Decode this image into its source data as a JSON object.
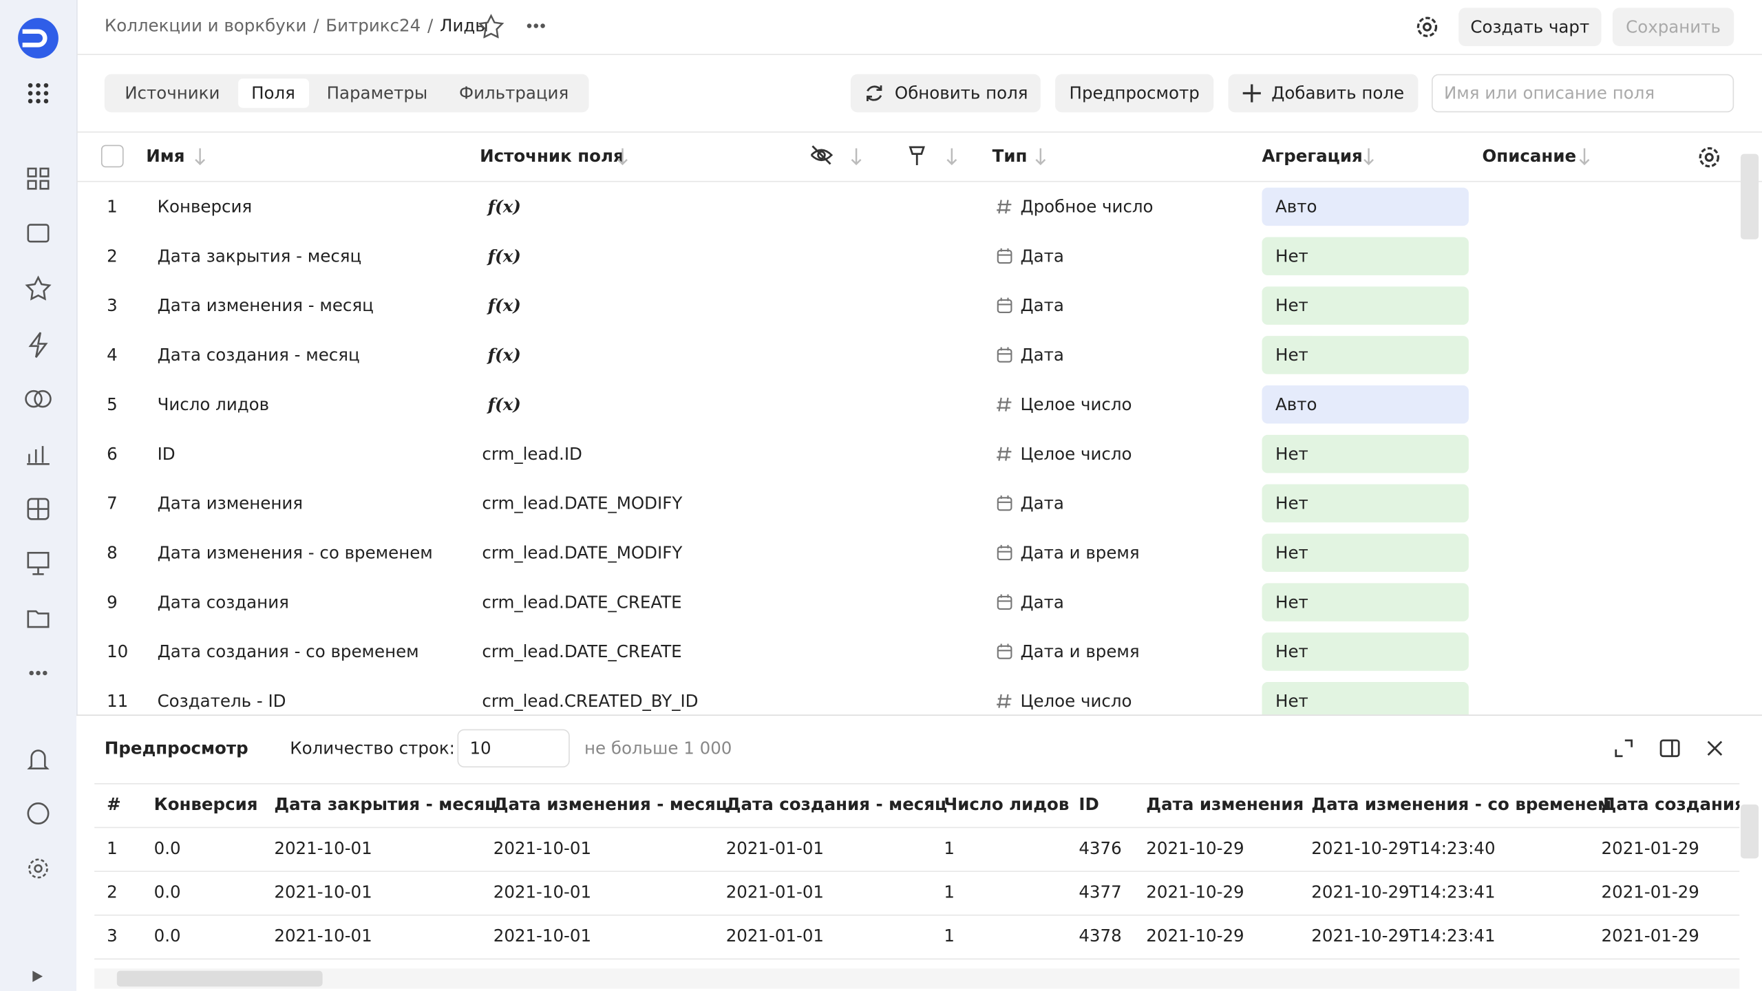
{
  "header": {
    "breadcrumbs": [
      "Коллекции и воркбуки",
      "Битрикс24",
      "Лиды"
    ],
    "separator": "/",
    "buttons": [
      "Создать чарт",
      "Сохранить"
    ]
  },
  "toolbar": {
    "tabs": [
      "Источники",
      "Поля",
      "Параметры",
      "Фильтрация"
    ],
    "active_tab": 1,
    "buttons": [
      "Обновить поля",
      "Предпросмотр",
      "Добавить поле"
    ],
    "search_placeholder": "Имя или описание поля"
  },
  "fields_table": {
    "columns": [
      "Имя",
      "Источник поля",
      "Тип",
      "Агрегация",
      "Описание"
    ],
    "rows": [
      [
        "1",
        "Конверсия",
        "f(x)",
        "Дробное число",
        "Авто"
      ],
      [
        "2",
        "Дата закрытия - месяц",
        "f(x)",
        "Дата",
        "Нет"
      ],
      [
        "3",
        "Дата изменения - месяц",
        "f(x)",
        "Дата",
        "Нет"
      ],
      [
        "4",
        "Дата создания - месяц",
        "f(x)",
        "Дата",
        "Нет"
      ],
      [
        "5",
        "Число лидов",
        "f(x)",
        "Целое число",
        "Авто"
      ],
      [
        "6",
        "ID",
        "crm_lead.ID",
        "Целое число",
        "Нет"
      ],
      [
        "7",
        "Дата изменения",
        "crm_lead.DATE_MODIFY",
        "Дата",
        "Нет"
      ],
      [
        "8",
        "Дата изменения - со временем",
        "crm_lead.DATE_MODIFY",
        "Дата и время",
        "Нет"
      ],
      [
        "9",
        "Дата создания",
        "crm_lead.DATE_CREATE",
        "Дата",
        "Нет"
      ],
      [
        "10",
        "Дата создания - со временем",
        "crm_lead.DATE_CREATE",
        "Дата и время",
        "Нет"
      ],
      [
        "11",
        "Создатель - ID",
        "crm_lead.CREATED_BY_ID",
        "Целое число",
        "Нет"
      ]
    ]
  },
  "preview": {
    "title": "Предпросмотр",
    "rows_label": "Количество строк:",
    "rows_value": "10",
    "rows_hint": "не больше 1 000",
    "columns": [
      "#",
      "Конверсия",
      "Дата закрытия - месяц",
      "Дата изменения - месяц",
      "Дата создания - месяц",
      "Число лидов",
      "ID",
      "Дата изменения",
      "Дата изменения - со временем",
      "Дата создания"
    ],
    "rows": [
      [
        "1",
        "0.0",
        "2021-10-01",
        "2021-10-01",
        "2021-01-01",
        "1",
        "4376",
        "2021-10-29",
        "2021-10-29T14:23:40",
        "2021-01-29"
      ],
      [
        "2",
        "0.0",
        "2021-10-01",
        "2021-10-01",
        "2021-01-01",
        "1",
        "4377",
        "2021-10-29",
        "2021-10-29T14:23:41",
        "2021-01-29"
      ],
      [
        "3",
        "0.0",
        "2021-10-01",
        "2021-10-01",
        "2021-01-01",
        "1",
        "4378",
        "2021-10-29",
        "2021-10-29T14:23:41",
        "2021-01-29"
      ]
    ]
  }
}
